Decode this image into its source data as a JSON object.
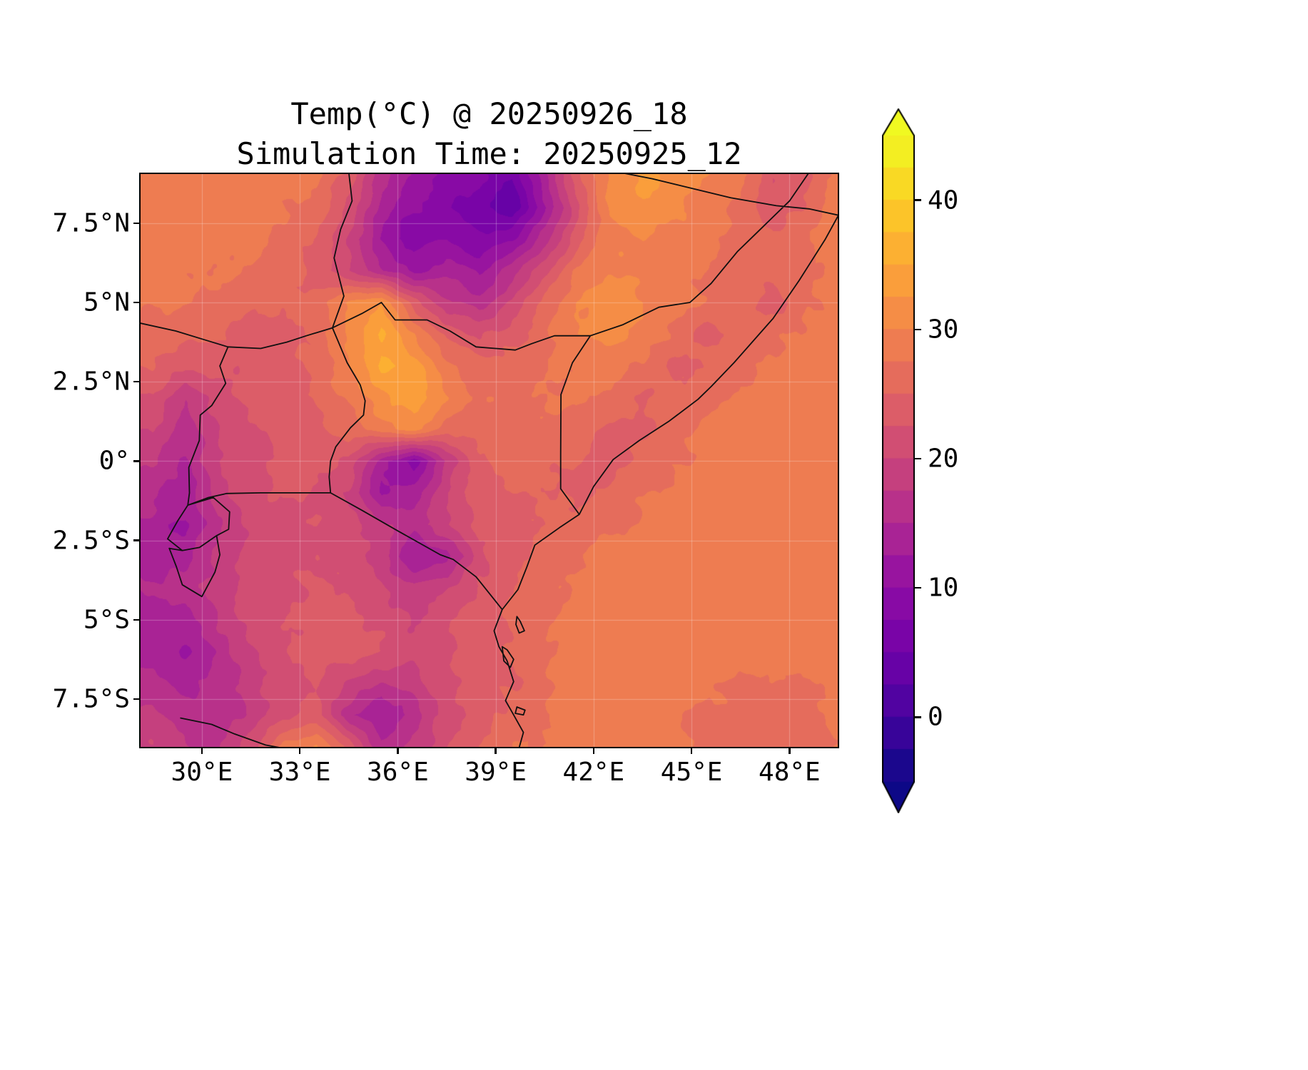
{
  "title": {
    "line1": "Temp(°C) @ 20250926_18",
    "line2": "Simulation Time: 20250925_12"
  },
  "axes": {
    "x_ticks": [
      {
        "label": "30°E",
        "lon": 30
      },
      {
        "label": "33°E",
        "lon": 33
      },
      {
        "label": "36°E",
        "lon": 36
      },
      {
        "label": "39°E",
        "lon": 39
      },
      {
        "label": "42°E",
        "lon": 42
      },
      {
        "label": "45°E",
        "lon": 45
      },
      {
        "label": "48°E",
        "lon": 48
      }
    ],
    "y_ticks": [
      {
        "label": "7.5°N",
        "lat": 7.5
      },
      {
        "label": "5°N",
        "lat": 5
      },
      {
        "label": "2.5°N",
        "lat": 2.5
      },
      {
        "label": "0°",
        "lat": 0
      },
      {
        "label": "2.5°S",
        "lat": -2.5
      },
      {
        "label": "5°S",
        "lat": -5
      },
      {
        "label": "7.5°S",
        "lat": -7.5
      }
    ],
    "lon_range": [
      28.1,
      49.5
    ],
    "lat_range": [
      -9.03,
      9.07
    ],
    "grid": true
  },
  "colorbar": {
    "ticks": [
      {
        "label": "40",
        "value": 40
      },
      {
        "label": "30",
        "value": 30
      },
      {
        "label": "20",
        "value": 20
      },
      {
        "label": "10",
        "value": 10
      },
      {
        "label": "0",
        "value": 0
      }
    ],
    "vmin": -5,
    "vmax": 45,
    "band_step_c": 2.5,
    "colormap": "plasma",
    "extend": "both",
    "colors": [
      "#0d0887",
      "#46039f",
      "#7201a8",
      "#8f0da4",
      "#b12a90",
      "#cc4778",
      "#e16462",
      "#f2844b",
      "#fca636",
      "#fcce25",
      "#f0f921"
    ]
  },
  "chart_data": {
    "type": "heatmap",
    "title": "Temp(°C) @ 20250926_18",
    "subtitle": "Simulation Time: 20250925_12",
    "units": "°C",
    "legend_position": "right-colorbar",
    "lon": [
      28.5,
      29.5,
      30.5,
      31.5,
      32.5,
      33.5,
      34.5,
      35.5,
      36.5,
      37.5,
      38.5,
      39.5,
      40.5,
      41.5,
      42.5,
      43.5,
      44.5,
      45.5,
      46.5,
      47.5,
      48.5,
      49.5
    ],
    "lat": [
      9,
      8,
      7,
      6,
      5,
      4,
      3,
      2,
      1,
      0,
      -1,
      -2,
      -3,
      -4,
      -5,
      -6,
      -7,
      -8,
      -9
    ],
    "values_c": [
      [
        29,
        29,
        29,
        29,
        29,
        28,
        24,
        16,
        12,
        10,
        8,
        5,
        14,
        24,
        31,
        33,
        32,
        30,
        28,
        23,
        24,
        29
      ],
      [
        29,
        29,
        29,
        28,
        28,
        27,
        22,
        14,
        10,
        8,
        6,
        3,
        12,
        22,
        30,
        32,
        31,
        29,
        27,
        23,
        25,
        29
      ],
      [
        29,
        29,
        28,
        28,
        27,
        25,
        20,
        12,
        8,
        10,
        8,
        10,
        16,
        24,
        29,
        30,
        29,
        28,
        27,
        25,
        27,
        29
      ],
      [
        29,
        28,
        28,
        27,
        26,
        24,
        20,
        16,
        12,
        14,
        12,
        16,
        22,
        28,
        30,
        29,
        28,
        27,
        26,
        26,
        27,
        29
      ],
      [
        28,
        28,
        27,
        26,
        25,
        26,
        30,
        33,
        24,
        18,
        16,
        20,
        26,
        30,
        32,
        30,
        28,
        27,
        26,
        24,
        27,
        29
      ],
      [
        27,
        26,
        25,
        24,
        24,
        26,
        31,
        35,
        30,
        24,
        22,
        24,
        27,
        30,
        31,
        29,
        27,
        24,
        26,
        27,
        28,
        29
      ],
      [
        25,
        23,
        23,
        23,
        24,
        26,
        30,
        35,
        34,
        28,
        26,
        26,
        27,
        28,
        28,
        27,
        24,
        26,
        27,
        28,
        29,
        29
      ],
      [
        22,
        18,
        21,
        23,
        24,
        25,
        28,
        32,
        34,
        30,
        27,
        27,
        28,
        28,
        27,
        25,
        26,
        27,
        28,
        29,
        29,
        29
      ],
      [
        20,
        16,
        20,
        22,
        23,
        24,
        26,
        29,
        31,
        26,
        26,
        26,
        27,
        27,
        24,
        25,
        26,
        28,
        29,
        29,
        29,
        29
      ],
      [
        18,
        15,
        20,
        22,
        23,
        23,
        22,
        14,
        8,
        18,
        24,
        26,
        26,
        25,
        24,
        26,
        27,
        28,
        29,
        29,
        29,
        29
      ],
      [
        16,
        13,
        19,
        22,
        23,
        22,
        20,
        12,
        14,
        20,
        24,
        25,
        25,
        24,
        26,
        27,
        28,
        29,
        29,
        29,
        29,
        29
      ],
      [
        14,
        12,
        17,
        21,
        22,
        22,
        21,
        18,
        16,
        20,
        23,
        24,
        25,
        26,
        27,
        28,
        29,
        29,
        29,
        29,
        29,
        29
      ],
      [
        13,
        14,
        18,
        21,
        22,
        22,
        21,
        19,
        12,
        14,
        22,
        24,
        26,
        27,
        28,
        29,
        29,
        29,
        29,
        29,
        29,
        29
      ],
      [
        15,
        16,
        19,
        21,
        22,
        23,
        22,
        20,
        18,
        20,
        23,
        25,
        27,
        28,
        29,
        29,
        29,
        29,
        29,
        29,
        29,
        29
      ],
      [
        13,
        14,
        18,
        21,
        22,
        23,
        23,
        22,
        20,
        22,
        24,
        25,
        27,
        29,
        29,
        29,
        29,
        29,
        29,
        29,
        29,
        29
      ],
      [
        14,
        12,
        16,
        20,
        22,
        24,
        24,
        23,
        21,
        22,
        24,
        25,
        27,
        29,
        29,
        29,
        29,
        29,
        29,
        29,
        29,
        29
      ],
      [
        16,
        14,
        15,
        19,
        21,
        23,
        20,
        17,
        19,
        22,
        24,
        25,
        27,
        29,
        29,
        29,
        29,
        28,
        27,
        27,
        27,
        28
      ],
      [
        18,
        16,
        16,
        18,
        22,
        24,
        16,
        12,
        16,
        21,
        24,
        26,
        27,
        29,
        29,
        29,
        28,
        27,
        26,
        26,
        26,
        28
      ],
      [
        20,
        18,
        17,
        21,
        28,
        30,
        24,
        16,
        18,
        22,
        25,
        27,
        28,
        29,
        29,
        29,
        28,
        26,
        26,
        26,
        26,
        28
      ]
    ]
  }
}
